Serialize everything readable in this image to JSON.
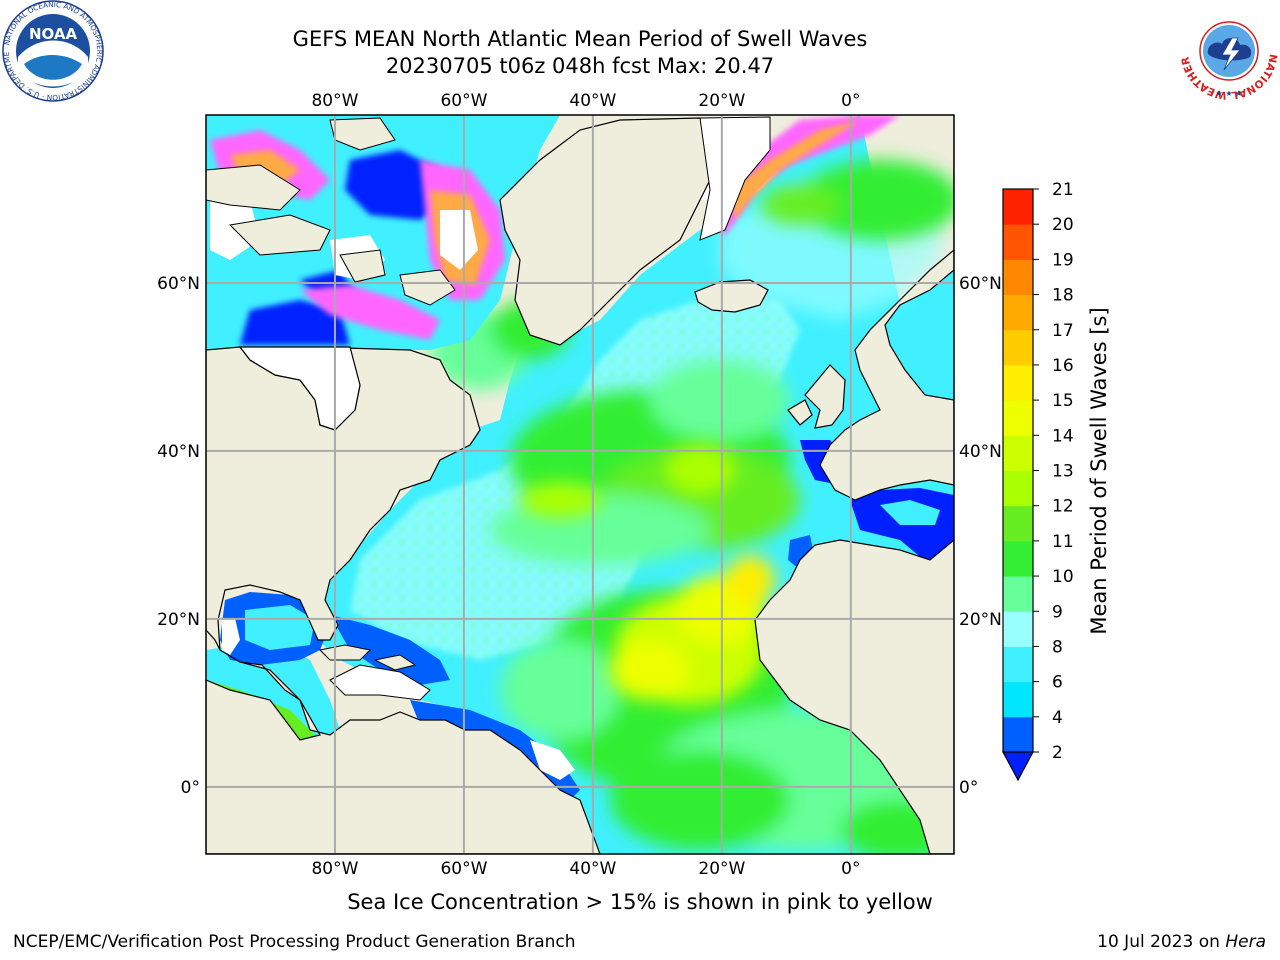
{
  "header": {
    "title": "GEFS MEAN North Atlantic Mean Period of Swell Waves",
    "subtitle": "20230705 t06z 048h fcst   Max: 20.47"
  },
  "logos": {
    "noaa_text": "NOAA",
    "noaa_ring": "NATIONAL OCEANIC AND ATMOSPHERIC ADMINISTRATION · U.S. DEPARTMENT OF COMMERCE",
    "nws_ring": "NATIONAL WEATHER SERVICE"
  },
  "map": {
    "lon_ticks": [
      "80°W",
      "60°W",
      "40°W",
      "20°W",
      "0°"
    ],
    "lat_ticks": [
      "60°N",
      "40°N",
      "20°N",
      "0°"
    ],
    "lon_range": [
      -100,
      16
    ],
    "lat_range": [
      -8,
      80
    ],
    "colors": {
      "land": "#efeedd",
      "ice_white": "#ffffff"
    }
  },
  "colorbar": {
    "label": "Mean Period of Swell Waves [s]",
    "ticks": [
      "2",
      "4",
      "6",
      "8",
      "9",
      "10",
      "11",
      "12",
      "13",
      "14",
      "15",
      "16",
      "17",
      "18",
      "19",
      "20",
      "21"
    ],
    "colors": [
      "#0060ff",
      "#00e6ff",
      "#40f0ff",
      "#99ffff",
      "#66ff99",
      "#33ee33",
      "#66ee22",
      "#aaff00",
      "#ccff00",
      "#eeff00",
      "#ffee00",
      "#ffcc00",
      "#ffaa00",
      "#ff8800",
      "#ff5500",
      "#ff2200"
    ],
    "under_color": "#0020ff"
  },
  "footer": {
    "note": "Sea Ice Concentration > 15% is shown in pink to yellow",
    "credit": "NCEP/EMC/Verification Post Processing Product Generation Branch",
    "date_prefix": "10 Jul 2023 on ",
    "machine": "Hera"
  }
}
